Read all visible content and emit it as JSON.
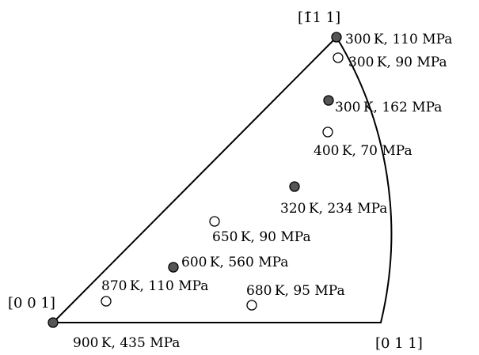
{
  "corners": {
    "c001": "[0 0 1]",
    "c011": "[0 1 1]",
    "c111": "[1̄1 1]"
  },
  "points": [
    {
      "id": "p-900-435",
      "label": "900 K, 435 MPa",
      "filled": true
    },
    {
      "id": "p-870-110",
      "label": "870 K, 110 MPa",
      "filled": false
    },
    {
      "id": "p-600-560",
      "label": "600 K, 560 MPa",
      "filled": true
    },
    {
      "id": "p-650-90",
      "label": "650 K, 90 MPa",
      "filled": false
    },
    {
      "id": "p-680-95",
      "label": "680 K, 95 MPa",
      "filled": false
    },
    {
      "id": "p-320-234",
      "label": "320 K, 234 MPa",
      "filled": true
    },
    {
      "id": "p-400-70",
      "label": "400 K, 70 MPa",
      "filled": false
    },
    {
      "id": "p-300-162",
      "label": "300 K, 162 MPa",
      "filled": true
    },
    {
      "id": "p-300-90",
      "label": "300 K, 90 MPa",
      "filled": false
    },
    {
      "id": "p-300-110",
      "label": "300 K, 110 MPa",
      "filled": true
    }
  ],
  "colors": {
    "filled": "#555555",
    "outline": "#000000"
  }
}
